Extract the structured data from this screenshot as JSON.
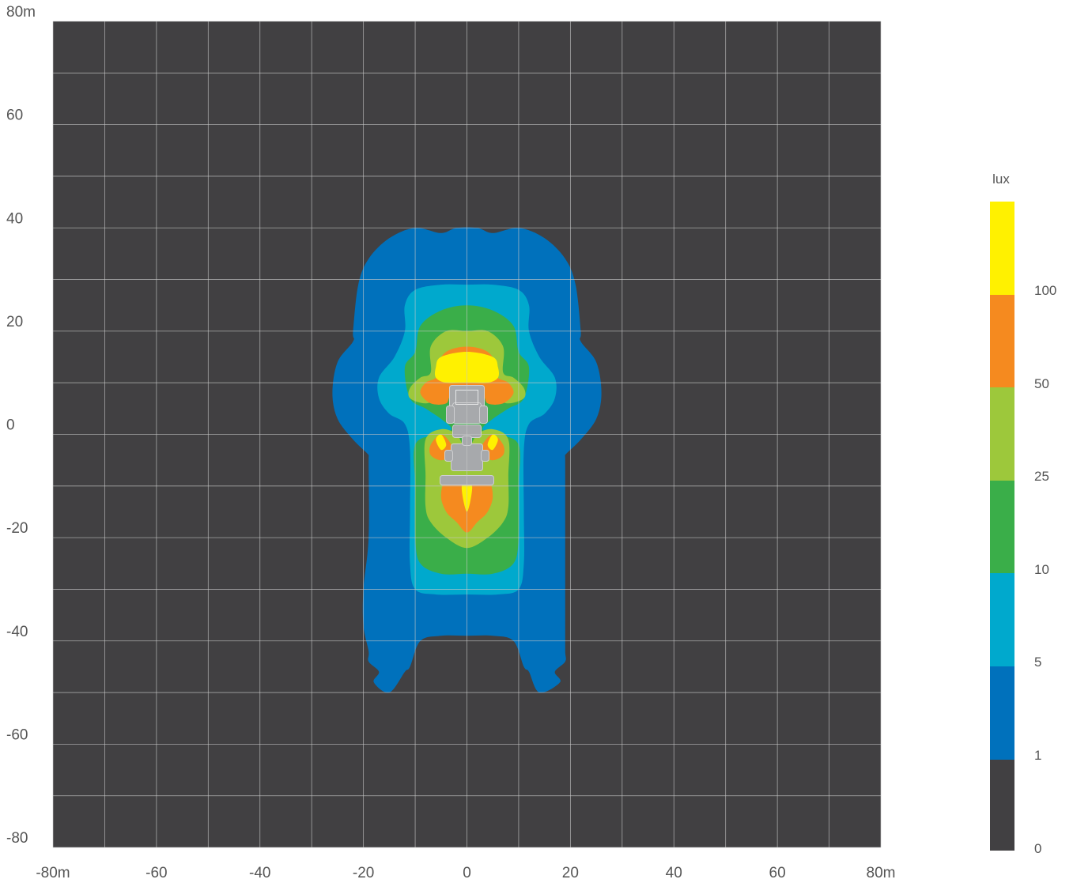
{
  "chart_data": {
    "type": "heatmap",
    "subtype": "isolux contour map",
    "title": "",
    "xlabel": "",
    "ylabel": "",
    "x_unit": "m",
    "y_unit": "m",
    "xlim": [
      -80,
      80
    ],
    "ylim": [
      -80,
      80
    ],
    "grid": true,
    "grid_step": 10,
    "x_ticks": [
      {
        "value": -80,
        "label": "-80m"
      },
      {
        "value": -60,
        "label": "-60"
      },
      {
        "value": -40,
        "label": "-40"
      },
      {
        "value": -20,
        "label": "-20"
      },
      {
        "value": 0,
        "label": "0"
      },
      {
        "value": 20,
        "label": "20"
      },
      {
        "value": 40,
        "label": "40"
      },
      {
        "value": 60,
        "label": "60"
      },
      {
        "value": 80,
        "label": "80m"
      }
    ],
    "y_ticks": [
      {
        "value": 80,
        "label": "80m"
      },
      {
        "value": 60,
        "label": "60"
      },
      {
        "value": 40,
        "label": "40"
      },
      {
        "value": 20,
        "label": "20"
      },
      {
        "value": 0,
        "label": "0"
      },
      {
        "value": -20,
        "label": "-20"
      },
      {
        "value": -40,
        "label": "-40"
      },
      {
        "value": -60,
        "label": "-60"
      },
      {
        "value": -80,
        "label": "-80"
      }
    ],
    "background_color": "#414042",
    "legend": {
      "title": "lux",
      "position": "right",
      "bands": [
        {
          "min": 100,
          "color": "#fff100"
        },
        {
          "min": 50,
          "color": "#f58a1f"
        },
        {
          "min": 25,
          "color": "#9dc83b"
        },
        {
          "min": 10,
          "color": "#3aae49"
        },
        {
          "min": 5,
          "color": "#00a9cd"
        },
        {
          "min": 1,
          "color": "#0071bc"
        },
        {
          "min": 0,
          "color": "#414042"
        }
      ],
      "tick_labels": [
        "100",
        "50",
        "25",
        "10",
        "5",
        "1",
        "0"
      ]
    },
    "contours": [
      {
        "level": 1,
        "color": "#0071bc",
        "polygons": [
          [
            [
              -2,
              40
            ],
            [
              -5,
              39
            ],
            [
              -10,
              40
            ],
            [
              -15,
              38
            ],
            [
              -19,
              34
            ],
            [
              -21,
              29
            ],
            [
              -22,
              20
            ],
            [
              -22,
              18
            ],
            [
              -25,
              14
            ],
            [
              -26,
              8
            ],
            [
              -25,
              3
            ],
            [
              -22,
              -1
            ],
            [
              -19,
              -4
            ],
            [
              -19,
              -5
            ],
            [
              -19,
              -20
            ],
            [
              -20,
              -30
            ],
            [
              -20,
              -37
            ],
            [
              -19,
              -42
            ],
            [
              -19,
              -44
            ],
            [
              -17,
              -46
            ],
            [
              -18,
              -48
            ],
            [
              -15,
              -50
            ],
            [
              -12,
              -46
            ],
            [
              -11,
              -45
            ],
            [
              -9,
              -40
            ],
            [
              -5,
              -39
            ],
            [
              0,
              -39
            ],
            [
              5,
              -39
            ],
            [
              9,
              -40
            ],
            [
              11,
              -45
            ],
            [
              12,
              -46
            ],
            [
              14,
              -50
            ],
            [
              18,
              -48
            ],
            [
              17,
              -46
            ],
            [
              19,
              -44
            ],
            [
              19,
              -42
            ],
            [
              19,
              -37
            ],
            [
              19,
              -30
            ],
            [
              19,
              -20
            ],
            [
              19,
              -5
            ],
            [
              19,
              -4
            ],
            [
              22,
              -1
            ],
            [
              25,
              3
            ],
            [
              26,
              8
            ],
            [
              25,
              14
            ],
            [
              22,
              18
            ],
            [
              22,
              20
            ],
            [
              21,
              29
            ],
            [
              19,
              34
            ],
            [
              15,
              38
            ],
            [
              10,
              40
            ],
            [
              5,
              39
            ],
            [
              2,
              40
            ]
          ]
        ]
      },
      {
        "level": 5,
        "color": "#00a9cd",
        "polygons": [
          [
            [
              0,
              29
            ],
            [
              -5,
              29
            ],
            [
              -10,
              28
            ],
            [
              -12,
              25
            ],
            [
              -12,
              20
            ],
            [
              -14,
              15
            ],
            [
              -17,
              11
            ],
            [
              -17,
              7
            ],
            [
              -15,
              4
            ],
            [
              -12,
              2
            ],
            [
              -11,
              -3
            ],
            [
              -11,
              -15
            ],
            [
              -11,
              -25
            ],
            [
              -10,
              -30
            ],
            [
              -6,
              -31
            ],
            [
              0,
              -31
            ],
            [
              6,
              -31
            ],
            [
              10,
              -30
            ],
            [
              11,
              -25
            ],
            [
              11,
              -15
            ],
            [
              11,
              -3
            ],
            [
              12,
              2
            ],
            [
              15,
              4
            ],
            [
              17,
              7
            ],
            [
              17,
              11
            ],
            [
              14,
              15
            ],
            [
              12,
              20
            ],
            [
              12,
              25
            ],
            [
              10,
              28
            ],
            [
              5,
              29
            ]
          ]
        ]
      },
      {
        "level": 10,
        "color": "#3aae49",
        "polygons": [
          [
            [
              0,
              25
            ],
            [
              -5,
              24
            ],
            [
              -9,
              21
            ],
            [
              -10,
              16
            ],
            [
              -12,
              13
            ],
            [
              -11,
              7
            ],
            [
              -8,
              5
            ],
            [
              -5,
              3
            ],
            [
              -3,
              1
            ],
            [
              -6,
              0
            ],
            [
              -10,
              -2
            ],
            [
              -10,
              -10
            ],
            [
              -10,
              -20
            ],
            [
              -9,
              -25
            ],
            [
              -5,
              -27
            ],
            [
              0,
              -27
            ],
            [
              5,
              -27
            ],
            [
              9,
              -25
            ],
            [
              10,
              -20
            ],
            [
              10,
              -10
            ],
            [
              10,
              -2
            ],
            [
              6,
              0
            ],
            [
              3,
              1
            ],
            [
              5,
              3
            ],
            [
              8,
              5
            ],
            [
              11,
              7
            ],
            [
              12,
              13
            ],
            [
              10,
              16
            ],
            [
              9,
              21
            ],
            [
              5,
              24
            ]
          ]
        ]
      },
      {
        "level": 25,
        "color": "#9dc83b",
        "polygons": [
          [
            [
              0,
              20
            ],
            [
              -4,
              20
            ],
            [
              -7,
              17
            ],
            [
              -7,
              12
            ],
            [
              -9,
              11
            ],
            [
              -11,
              9
            ],
            [
              -11,
              7
            ],
            [
              -8,
              6
            ],
            [
              -5,
              7
            ],
            [
              -3,
              7
            ],
            [
              0,
              7
            ],
            [
              3,
              7
            ],
            [
              5,
              7
            ],
            [
              8,
              6
            ],
            [
              11,
              7
            ],
            [
              11,
              9
            ],
            [
              9,
              11
            ],
            [
              7,
              12
            ],
            [
              7,
              17
            ],
            [
              4,
              20
            ]
          ],
          [
            [
              -5,
              1
            ],
            [
              -8,
              -1
            ],
            [
              -8,
              -8
            ],
            [
              -8,
              -14
            ],
            [
              -7,
              -17
            ],
            [
              -4,
              -20
            ],
            [
              0,
              -22
            ],
            [
              4,
              -20
            ],
            [
              7,
              -17
            ],
            [
              8,
              -14
            ],
            [
              8,
              -8
            ],
            [
              8,
              -1
            ],
            [
              5,
              1
            ],
            [
              2,
              0
            ],
            [
              0,
              -3
            ],
            [
              -2,
              0
            ]
          ]
        ]
      },
      {
        "level": 50,
        "color": "#f58a1f",
        "polygons": [
          [
            [
              0,
              17
            ],
            [
              -4,
              16
            ],
            [
              -6,
              13
            ],
            [
              -6,
              11
            ],
            [
              -8,
              10
            ],
            [
              -9,
              8
            ],
            [
              -7,
              6
            ],
            [
              -4,
              6
            ],
            [
              -3,
              8
            ],
            [
              0,
              9
            ],
            [
              3,
              8
            ],
            [
              4,
              6
            ],
            [
              7,
              6
            ],
            [
              9,
              8
            ],
            [
              8,
              10
            ],
            [
              6,
              11
            ],
            [
              6,
              13
            ],
            [
              4,
              16
            ]
          ],
          [
            [
              -5,
              0
            ],
            [
              -7,
              -2
            ],
            [
              -7,
              -4
            ],
            [
              -5,
              -5
            ],
            [
              -3,
              -4
            ],
            [
              -3,
              -2
            ]
          ],
          [
            [
              5,
              0
            ],
            [
              7,
              -2
            ],
            [
              7,
              -4
            ],
            [
              5,
              -5
            ],
            [
              3,
              -4
            ],
            [
              3,
              -2
            ]
          ],
          [
            [
              -4,
              -9
            ],
            [
              -5,
              -12
            ],
            [
              -4,
              -15
            ],
            [
              -2,
              -17
            ],
            [
              0,
              -19
            ],
            [
              2,
              -17
            ],
            [
              4,
              -15
            ],
            [
              5,
              -12
            ],
            [
              4,
              -9
            ],
            [
              0,
              -10
            ]
          ]
        ]
      },
      {
        "level": 100,
        "color": "#fff100",
        "polygons": [
          [
            [
              -5,
              15
            ],
            [
              -6,
              13
            ],
            [
              -6,
              11
            ],
            [
              -4,
              10
            ],
            [
              0,
              10
            ],
            [
              4,
              10
            ],
            [
              6,
              11
            ],
            [
              6,
              13
            ],
            [
              5,
              15
            ],
            [
              0,
              16
            ]
          ],
          [
            [
              -5,
              0
            ],
            [
              -6,
              -1
            ],
            [
              -5,
              -3
            ],
            [
              -4,
              -2
            ]
          ],
          [
            [
              5,
              0
            ],
            [
              6,
              -1
            ],
            [
              5,
              -3
            ],
            [
              4,
              -2
            ]
          ],
          [
            [
              -1,
              -10
            ],
            [
              0,
              -15
            ],
            [
              1,
              -10
            ]
          ]
        ]
      }
    ],
    "equipment_outline_color": "#a7a9ac"
  }
}
